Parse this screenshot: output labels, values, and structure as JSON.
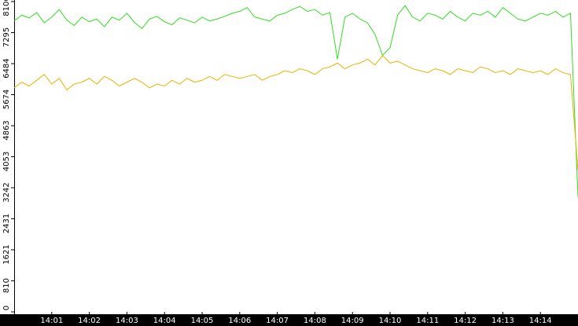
{
  "chart_data": {
    "type": "line",
    "x": [
      840,
      840.2,
      840.4,
      840.6,
      840.8,
      841,
      841.2,
      841.4,
      841.6,
      841.8,
      842,
      842.2,
      842.4,
      842.6,
      842.8,
      843,
      843.2,
      843.4,
      843.6,
      843.8,
      844,
      844.2,
      844.4,
      844.6,
      844.8,
      845,
      845.2,
      845.4,
      845.6,
      845.8,
      846,
      846.2,
      846.4,
      846.6,
      846.8,
      847,
      847.2,
      847.4,
      847.6,
      847.8,
      848,
      848.2,
      848.4,
      848.6,
      848.8,
      849,
      849.2,
      849.4,
      849.6,
      849.8,
      850,
      850.2,
      850.4,
      850.6,
      850.8,
      851,
      851.2,
      851.4,
      851.6,
      851.8,
      852,
      852.2,
      852.4,
      852.6,
      852.8,
      853,
      853.2,
      853.4,
      853.6,
      853.8,
      854,
      854.2,
      854.4,
      854.6,
      854.8,
      855
    ],
    "series": [
      {
        "color": "#33dd22",
        "values": [
          7600,
          7750,
          7680,
          7820,
          7550,
          7700,
          7900,
          7620,
          7480,
          7700,
          7580,
          7650,
          7450,
          7700,
          7620,
          7800,
          7560,
          7400,
          7650,
          7720,
          7580,
          7500,
          7680,
          7620,
          7550,
          7700,
          7600,
          7650,
          7720,
          7800,
          7850,
          7950,
          7700,
          7650,
          7600,
          7750,
          7800,
          7900,
          7980,
          7850,
          7900,
          7750,
          7820,
          6600,
          7700,
          7800,
          7650,
          7550,
          7250,
          6700,
          6900,
          7750,
          8000,
          7700,
          7600,
          7800,
          7750,
          7650,
          7850,
          7700,
          7600,
          7800,
          7750,
          7850,
          7700,
          7950,
          7800,
          7650,
          7600,
          7700,
          7800,
          7750,
          7850,
          7700,
          7800,
          3000
        ]
      },
      {
        "color": "#e8b400",
        "values": [
          5850,
          6000,
          5900,
          6050,
          6200,
          5950,
          6100,
          5800,
          5950,
          6000,
          6100,
          5950,
          6150,
          6050,
          5900,
          6000,
          6100,
          6000,
          5850,
          5950,
          5900,
          6050,
          5950,
          6100,
          6000,
          6050,
          6150,
          6050,
          6200,
          6150,
          6100,
          6150,
          6200,
          6050,
          6150,
          6200,
          6300,
          6250,
          6350,
          6300,
          6200,
          6350,
          6400,
          6500,
          6350,
          6450,
          6500,
          6600,
          6450,
          6700,
          6500,
          6550,
          6450,
          6350,
          6300,
          6250,
          6350,
          6300,
          6200,
          6350,
          6300,
          6250,
          6400,
          6350,
          6250,
          6300,
          6200,
          6350,
          6300,
          6250,
          6300,
          6200,
          6350,
          6250,
          6200,
          3700
        ]
      }
    ],
    "xlim": [
      840,
      855
    ],
    "xticks": [
      {
        "value": 841,
        "label": "14:01"
      },
      {
        "value": 842,
        "label": "14:02"
      },
      {
        "value": 843,
        "label": "14:03"
      },
      {
        "value": 844,
        "label": "14:04"
      },
      {
        "value": 845,
        "label": "14:05"
      },
      {
        "value": 846,
        "label": "14:06"
      },
      {
        "value": 847,
        "label": "14:07"
      },
      {
        "value": 848,
        "label": "14:08"
      },
      {
        "value": 849,
        "label": "14:09"
      },
      {
        "value": 850,
        "label": "14:10"
      },
      {
        "value": 851,
        "label": "14:11"
      },
      {
        "value": 852,
        "label": "14:12"
      },
      {
        "value": 853,
        "label": "14:13"
      },
      {
        "value": 854,
        "label": "14:14"
      }
    ],
    "ylim": [
      0,
      8106
    ],
    "yticks": [
      0,
      810,
      1621,
      2431,
      3242,
      4053,
      4863,
      5674,
      6484,
      7295,
      8106
    ]
  }
}
